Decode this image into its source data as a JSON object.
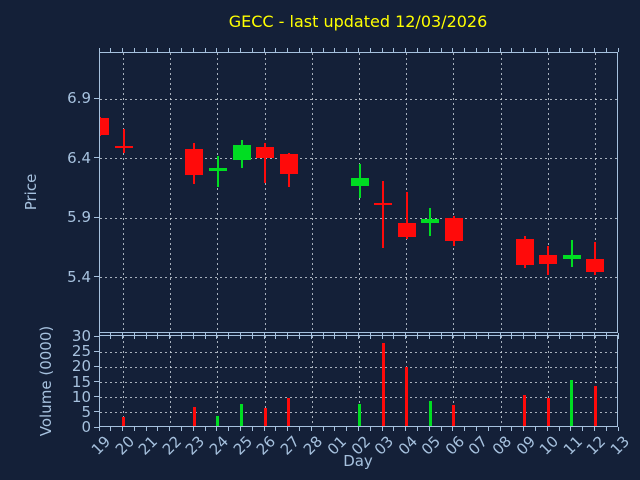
{
  "title": {
    "text": "GECC - last updated 12/03/2026"
  },
  "colors": {
    "background": "#142038",
    "axis": "#a6c1de",
    "grid": "#cdd5de",
    "title": "#ffff00",
    "up": "#00dd22",
    "down": "#ff0a0a"
  },
  "chart_data": {
    "type": "candlestick+volume-bar",
    "title": "GECC - last updated 12/03/2026",
    "xlabel": "Day",
    "price_axis": {
      "label": "Price",
      "range": [
        4.94,
        7.29
      ],
      "ticks": [
        6.9,
        6.4,
        5.9,
        5.4
      ]
    },
    "volume_axis": {
      "label": "Volume (0000)",
      "range": [
        0,
        30.4
      ],
      "ticks": [
        30,
        25,
        20,
        15,
        10,
        5,
        0
      ]
    },
    "x_categories": [
      "19",
      "20",
      "21",
      "22",
      "23",
      "24",
      "25",
      "26",
      "27",
      "28",
      "01",
      "02",
      "03",
      "04",
      "05",
      "06",
      "07",
      "08",
      "09",
      "10",
      "11",
      "12",
      "13"
    ],
    "gridline_x": [
      "20",
      "22",
      "24",
      "26",
      "28",
      "02",
      "04",
      "06",
      "08",
      "10",
      "12"
    ],
    "candles": [
      {
        "day": "19",
        "open": 6.74,
        "high": 6.75,
        "low": 6.59,
        "close": 6.6,
        "volume": 0
      },
      {
        "day": "20",
        "open": 6.51,
        "high": 6.65,
        "low": 6.45,
        "close": 6.49,
        "volume": 3.5
      },
      {
        "day": "23",
        "open": 6.48,
        "high": 6.53,
        "low": 6.19,
        "close": 6.26,
        "volume": 7
      },
      {
        "day": "24",
        "open": 6.3,
        "high": 6.42,
        "low": 6.16,
        "close": 6.32,
        "volume": 4
      },
      {
        "day": "25",
        "open": 6.39,
        "high": 6.56,
        "low": 6.32,
        "close": 6.52,
        "volume": 8
      },
      {
        "day": "26",
        "open": 6.5,
        "high": 6.53,
        "low": 6.2,
        "close": 6.41,
        "volume": 6.5
      },
      {
        "day": "27",
        "open": 6.44,
        "high": 6.45,
        "low": 6.16,
        "close": 6.27,
        "volume": 10
      },
      {
        "day": "02",
        "open": 6.17,
        "high": 6.36,
        "low": 6.07,
        "close": 6.24,
        "volume": 8
      },
      {
        "day": "03",
        "open": 6.03,
        "high": 6.21,
        "low": 5.65,
        "close": 6.01,
        "volume": 28
      },
      {
        "day": "04",
        "open": 5.86,
        "high": 6.12,
        "low": 5.73,
        "close": 5.74,
        "volume": 20
      },
      {
        "day": "05",
        "open": 5.86,
        "high": 5.99,
        "low": 5.75,
        "close": 5.89,
        "volume": 9
      },
      {
        "day": "06",
        "open": 5.9,
        "high": 5.92,
        "low": 5.67,
        "close": 5.71,
        "volume": 7.5
      },
      {
        "day": "09",
        "open": 5.73,
        "high": 5.75,
        "low": 5.48,
        "close": 5.51,
        "volume": 11
      },
      {
        "day": "10",
        "open": 5.59,
        "high": 5.67,
        "low": 5.42,
        "close": 5.52,
        "volume": 10
      },
      {
        "day": "11",
        "open": 5.56,
        "high": 5.72,
        "low": 5.49,
        "close": 5.59,
        "volume": 16
      },
      {
        "day": "12",
        "open": 5.56,
        "high": 5.7,
        "low": 5.42,
        "close": 5.45,
        "volume": 14
      }
    ]
  }
}
